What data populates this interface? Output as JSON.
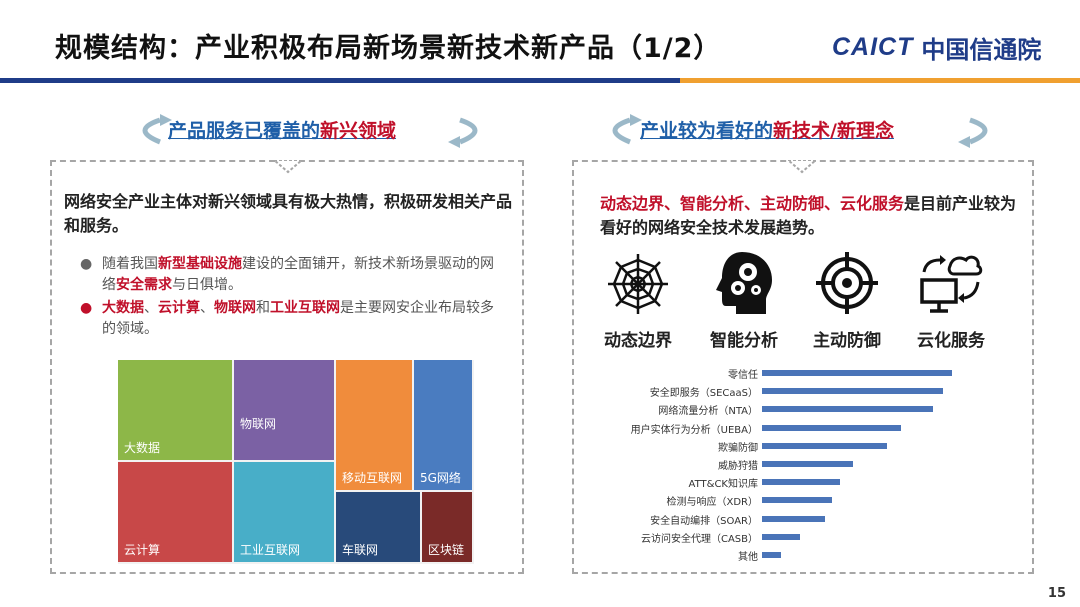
{
  "header": {
    "title": "规模结构：产业积极布局新场景新技术新产品（1/2）",
    "logo_en": "CAICT",
    "logo_cn": "中国信通院"
  },
  "left": {
    "subtitle_blue": "产品服务已覆盖的",
    "subtitle_red": "新兴领域",
    "intro": "网络安全产业主体对新兴领域具有极大热情，积极研发相关产品和服务。",
    "bullet1": {
      "a": "随着我国",
      "b": "新型基础设施",
      "c": "建设的全面铺开，新技术新场景驱动的网络",
      "d": "安全需求",
      "e": "与日俱增。"
    },
    "bullet2": {
      "a": "大数据",
      "b": "、",
      "c": "云计算",
      "d": "、",
      "e": "物联网",
      "f": "和",
      "g": "工业互联网",
      "h": "是主要网安企业布局较多的领域。"
    },
    "treemap": [
      {
        "label": "大数据",
        "color": "#8db748"
      },
      {
        "label": "云计算",
        "color": "#c84848"
      },
      {
        "label": "物联网",
        "color": "#7b61a4"
      },
      {
        "label": "工业互联网",
        "color": "#48aec8"
      },
      {
        "label": "移动互联网",
        "color": "#f08c3c"
      },
      {
        "label": "5G网络",
        "color": "#4a7cc0"
      },
      {
        "label": "车联网",
        "color": "#284a7a"
      },
      {
        "label": "区块链",
        "color": "#7a2a28"
      }
    ]
  },
  "right": {
    "subtitle_blue": "产业较为看好的",
    "subtitle_red": "新技术/新理念",
    "intro_red": "动态边界、智能分析、主动防御、云化服务",
    "intro_black": "是目前产业较为看好的网络安全技术发展趋势。",
    "icons": [
      {
        "icon": "web-icon",
        "label": "动态边界"
      },
      {
        "icon": "brain-gears-icon",
        "label": "智能分析"
      },
      {
        "icon": "target-icon",
        "label": "主动防御"
      },
      {
        "icon": "cloud-monitor-icon",
        "label": "云化服务"
      }
    ]
  },
  "chart_data": {
    "type": "bar",
    "orientation": "horizontal",
    "categories": [
      "零信任",
      "安全即服务（SECaaS）",
      "网络流量分析（NTA）",
      "用户实体行为分析（UEBA）",
      "欺骗防御",
      "威胁狩猎",
      "ATT&CK知识库",
      "检测与响应（XDR）",
      "安全自动编排（SOAR）",
      "云访问安全代理（CASB）",
      "其他"
    ],
    "values": [
      100,
      95,
      90,
      73,
      66,
      48,
      41,
      37,
      33,
      20,
      10
    ],
    "grid": false
  },
  "page_number": "15",
  "colors": {
    "brand_blue": "#1f3c88",
    "accent_orange": "#f0a030",
    "highlight_red": "#c0102a",
    "bar_blue": "#4a74b8"
  }
}
